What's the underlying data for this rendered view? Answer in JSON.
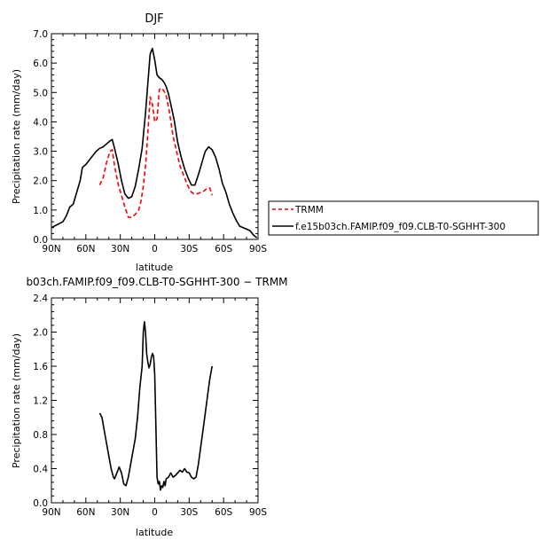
{
  "chart_data": [
    {
      "type": "line",
      "title": "DJF",
      "xlabel": "latitude",
      "ylabel": "Precipitation rate (mm/day)",
      "xlim": [
        -90,
        90
      ],
      "ylim": [
        0,
        7
      ],
      "x_ticks": [
        {
          "value": -90,
          "label": "90N"
        },
        {
          "value": -60,
          "label": "60N"
        },
        {
          "value": -30,
          "label": "30N"
        },
        {
          "value": 0,
          "label": "0"
        },
        {
          "value": 30,
          "label": "30S"
        },
        {
          "value": 60,
          "label": "60S"
        },
        {
          "value": 90,
          "label": "90S"
        }
      ],
      "y_ticks": [
        {
          "value": 0,
          "label": "0.0"
        },
        {
          "value": 1,
          "label": "1.0"
        },
        {
          "value": 2,
          "label": "2.0"
        },
        {
          "value": 3,
          "label": "3.0"
        },
        {
          "value": 4,
          "label": "4.0"
        },
        {
          "value": 5,
          "label": "5.0"
        },
        {
          "value": 6,
          "label": "6.0"
        },
        {
          "value": 7,
          "label": "7.0"
        }
      ],
      "legend_position": "right",
      "series": [
        {
          "name": "TRMM",
          "color": "#ff0000",
          "dash": true,
          "points": [
            [
              -48,
              1.85
            ],
            [
              -45,
              2.1
            ],
            [
              -42,
              2.6
            ],
            [
              -39,
              3.0
            ],
            [
              -37,
              3.05
            ],
            [
              -35,
              2.5
            ],
            [
              -32,
              1.9
            ],
            [
              -29,
              1.5
            ],
            [
              -26,
              1.1
            ],
            [
              -23,
              0.75
            ],
            [
              -20,
              0.75
            ],
            [
              -17,
              0.85
            ],
            [
              -14,
              1.0
            ],
            [
              -12,
              1.3
            ],
            [
              -10,
              1.8
            ],
            [
              -8,
              2.5
            ],
            [
              -6,
              3.6
            ],
            [
              -4,
              4.85
            ],
            [
              -2,
              4.6
            ],
            [
              0,
              4.0
            ],
            [
              2,
              4.1
            ],
            [
              4,
              5.1
            ],
            [
              6,
              5.15
            ],
            [
              8,
              5.05
            ],
            [
              10,
              4.9
            ],
            [
              13,
              4.3
            ],
            [
              16,
              3.5
            ],
            [
              19,
              3.0
            ],
            [
              22,
              2.5
            ],
            [
              25,
              2.2
            ],
            [
              28,
              1.9
            ],
            [
              31,
              1.65
            ],
            [
              34,
              1.55
            ],
            [
              37,
              1.55
            ],
            [
              40,
              1.6
            ],
            [
              43,
              1.65
            ],
            [
              46,
              1.75
            ],
            [
              48,
              1.75
            ],
            [
              50,
              1.5
            ]
          ]
        },
        {
          "name": "f.e15b03ch.FAMIP.f09_f09.CLB-T0-SGHHT-300",
          "color": "#000000",
          "dash": false,
          "points": [
            [
              -90,
              0.4
            ],
            [
              -85,
              0.5
            ],
            [
              -80,
              0.6
            ],
            [
              -77,
              0.8
            ],
            [
              -74,
              1.1
            ],
            [
              -71,
              1.2
            ],
            [
              -68,
              1.6
            ],
            [
              -65,
              2.0
            ],
            [
              -63,
              2.45
            ],
            [
              -60,
              2.55
            ],
            [
              -57,
              2.7
            ],
            [
              -54,
              2.85
            ],
            [
              -51,
              3.0
            ],
            [
              -48,
              3.1
            ],
            [
              -45,
              3.15
            ],
            [
              -42,
              3.25
            ],
            [
              -39,
              3.35
            ],
            [
              -37,
              3.4
            ],
            [
              -35,
              3.1
            ],
            [
              -32,
              2.6
            ],
            [
              -29,
              2.0
            ],
            [
              -26,
              1.55
            ],
            [
              -23,
              1.4
            ],
            [
              -20,
              1.45
            ],
            [
              -17,
              1.8
            ],
            [
              -14,
              2.4
            ],
            [
              -11,
              3.1
            ],
            [
              -8,
              4.3
            ],
            [
              -6,
              5.3
            ],
            [
              -4,
              6.3
            ],
            [
              -2,
              6.5
            ],
            [
              0,
              6.1
            ],
            [
              2,
              5.6
            ],
            [
              4,
              5.5
            ],
            [
              6,
              5.45
            ],
            [
              8,
              5.35
            ],
            [
              10,
              5.2
            ],
            [
              12,
              4.95
            ],
            [
              14,
              4.6
            ],
            [
              17,
              4.05
            ],
            [
              20,
              3.3
            ],
            [
              23,
              2.8
            ],
            [
              26,
              2.4
            ],
            [
              29,
              2.1
            ],
            [
              32,
              1.85
            ],
            [
              35,
              1.85
            ],
            [
              38,
              2.2
            ],
            [
              41,
              2.6
            ],
            [
              44,
              3.0
            ],
            [
              47,
              3.15
            ],
            [
              50,
              3.05
            ],
            [
              53,
              2.8
            ],
            [
              56,
              2.4
            ],
            [
              59,
              1.9
            ],
            [
              62,
              1.6
            ],
            [
              65,
              1.2
            ],
            [
              68,
              0.9
            ],
            [
              71,
              0.65
            ],
            [
              74,
              0.45
            ],
            [
              77,
              0.4
            ],
            [
              80,
              0.35
            ],
            [
              83,
              0.3
            ],
            [
              86,
              0.15
            ],
            [
              89,
              0.05
            ]
          ]
        }
      ]
    },
    {
      "type": "line",
      "title": "b03ch.FAMIP.f09_f09.CLB-T0-SGHHT-300 − TRMM",
      "xlabel": "latitude",
      "ylabel": "Precipitation rate (mm/day)",
      "xlim": [
        -90,
        90
      ],
      "ylim": [
        0,
        2.4
      ],
      "x_ticks": [
        {
          "value": -90,
          "label": "90N"
        },
        {
          "value": -60,
          "label": "60N"
        },
        {
          "value": -30,
          "label": "30N"
        },
        {
          "value": 0,
          "label": "0"
        },
        {
          "value": 30,
          "label": "30S"
        },
        {
          "value": 60,
          "label": "60S"
        },
        {
          "value": 90,
          "label": "90S"
        }
      ],
      "y_ticks": [
        {
          "value": 0,
          "label": "0.0"
        },
        {
          "value": 0.4,
          "label": "0.4"
        },
        {
          "value": 0.8,
          "label": "0.8"
        },
        {
          "value": 1.2,
          "label": "1.2"
        },
        {
          "value": 1.6,
          "label": "1.6"
        },
        {
          "value": 2.0,
          "label": "2.0"
        },
        {
          "value": 2.4,
          "label": "2.4"
        }
      ],
      "series": [
        {
          "color": "#000000",
          "dash": false,
          "points": [
            [
              -48,
              1.05
            ],
            [
              -46,
              1.0
            ],
            [
              -44,
              0.85
            ],
            [
              -42,
              0.7
            ],
            [
              -40,
              0.55
            ],
            [
              -38,
              0.4
            ],
            [
              -36,
              0.3
            ],
            [
              -35,
              0.28
            ],
            [
              -33,
              0.35
            ],
            [
              -31,
              0.42
            ],
            [
              -29,
              0.35
            ],
            [
              -27,
              0.22
            ],
            [
              -25,
              0.2
            ],
            [
              -23,
              0.3
            ],
            [
              -21,
              0.45
            ],
            [
              -19,
              0.6
            ],
            [
              -17,
              0.75
            ],
            [
              -15,
              1.0
            ],
            [
              -13,
              1.35
            ],
            [
              -11,
              1.6
            ],
            [
              -10,
              2.0
            ],
            [
              -9,
              2.12
            ],
            [
              -8,
              2.0
            ],
            [
              -7,
              1.75
            ],
            [
              -6,
              1.65
            ],
            [
              -5,
              1.58
            ],
            [
              -4,
              1.62
            ],
            [
              -3,
              1.7
            ],
            [
              -2,
              1.75
            ],
            [
              -1,
              1.72
            ],
            [
              0,
              1.5
            ],
            [
              1,
              0.9
            ],
            [
              2,
              0.3
            ],
            [
              3,
              0.22
            ],
            [
              4,
              0.25
            ],
            [
              5,
              0.15
            ],
            [
              6,
              0.2
            ],
            [
              7,
              0.18
            ],
            [
              8,
              0.25
            ],
            [
              9,
              0.2
            ],
            [
              10,
              0.28
            ],
            [
              12,
              0.3
            ],
            [
              14,
              0.35
            ],
            [
              16,
              0.3
            ],
            [
              18,
              0.32
            ],
            [
              20,
              0.35
            ],
            [
              22,
              0.38
            ],
            [
              24,
              0.36
            ],
            [
              26,
              0.4
            ],
            [
              28,
              0.36
            ],
            [
              30,
              0.35
            ],
            [
              32,
              0.3
            ],
            [
              34,
              0.28
            ],
            [
              36,
              0.3
            ],
            [
              38,
              0.45
            ],
            [
              40,
              0.65
            ],
            [
              42,
              0.85
            ],
            [
              44,
              1.05
            ],
            [
              46,
              1.25
            ],
            [
              48,
              1.45
            ],
            [
              50,
              1.6
            ]
          ]
        }
      ]
    }
  ]
}
